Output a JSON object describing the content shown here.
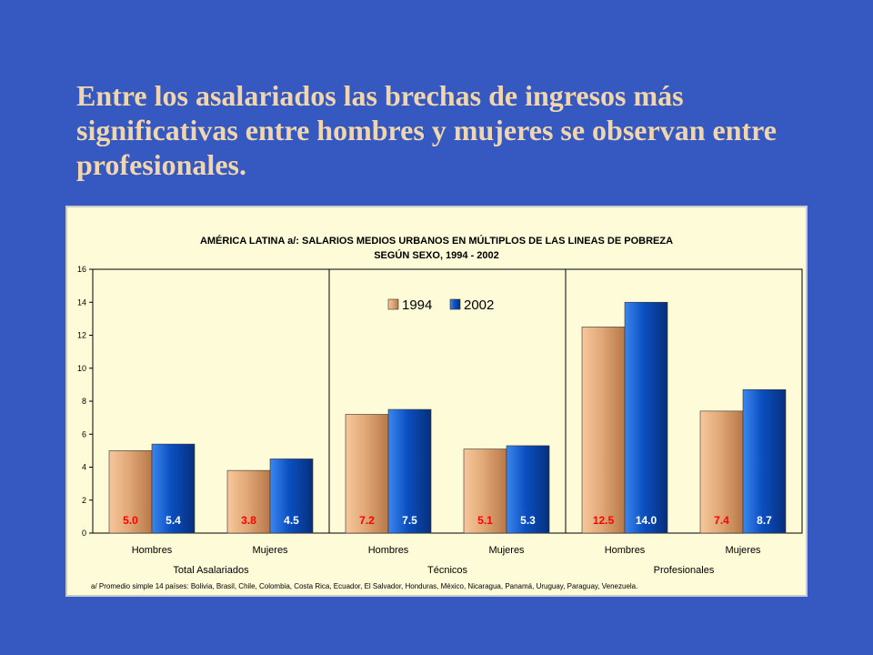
{
  "slide": {
    "title": "Entre los asalariados las brechas de ingresos más significativas entre hombres y mujeres se observan entre profesionales."
  },
  "chart_data": {
    "type": "bar",
    "title": "AMÉRICA LATINA a/: SALARIOS MEDIOS URBANOS EN MÚLTIPLOS DE LAS LINEAS DE POBREZA",
    "subtitle": "SEGÚN SEXO, 1994 - 2002",
    "groups": [
      "Total Asalariados",
      "Técnicos",
      "Profesionales"
    ],
    "categories": [
      "Hombres",
      "Mujeres",
      "Hombres",
      "Mujeres",
      "Hombres",
      "Mujeres"
    ],
    "series": [
      {
        "name": "1994",
        "values": [
          5.0,
          3.8,
          7.2,
          5.1,
          12.5,
          7.4
        ],
        "labels": [
          "5.0",
          "3.8",
          "7.2",
          "5.1",
          "12.5",
          "7.4"
        ],
        "color": "#e2a878",
        "label_color": "#ff0000"
      },
      {
        "name": "2002",
        "values": [
          5.4,
          4.5,
          7.5,
          5.3,
          14.0,
          8.7
        ],
        "labels": [
          "5.4",
          "4.5",
          "7.5",
          "5.3",
          "14.0",
          "8.7"
        ],
        "color": "#0b4fc0",
        "label_color": "#ffffff"
      }
    ],
    "ylim": [
      0,
      16
    ],
    "yticks": [
      0,
      2,
      4,
      6,
      8,
      10,
      12,
      14,
      16
    ],
    "grid": false,
    "legend_position": "top-center",
    "footnote": "a/ Promedio simple 14 países: Bolivia, Brasil, Chile, Colombia, Costa Rica, Ecuador, El Salvador, Honduras, México, Nicaragua, Panamá, Uruguay, Paraguay, Venezuela.",
    "colors": {
      "panel_background": "#fdfbd8",
      "panel_border": "#c9c9c9"
    }
  }
}
